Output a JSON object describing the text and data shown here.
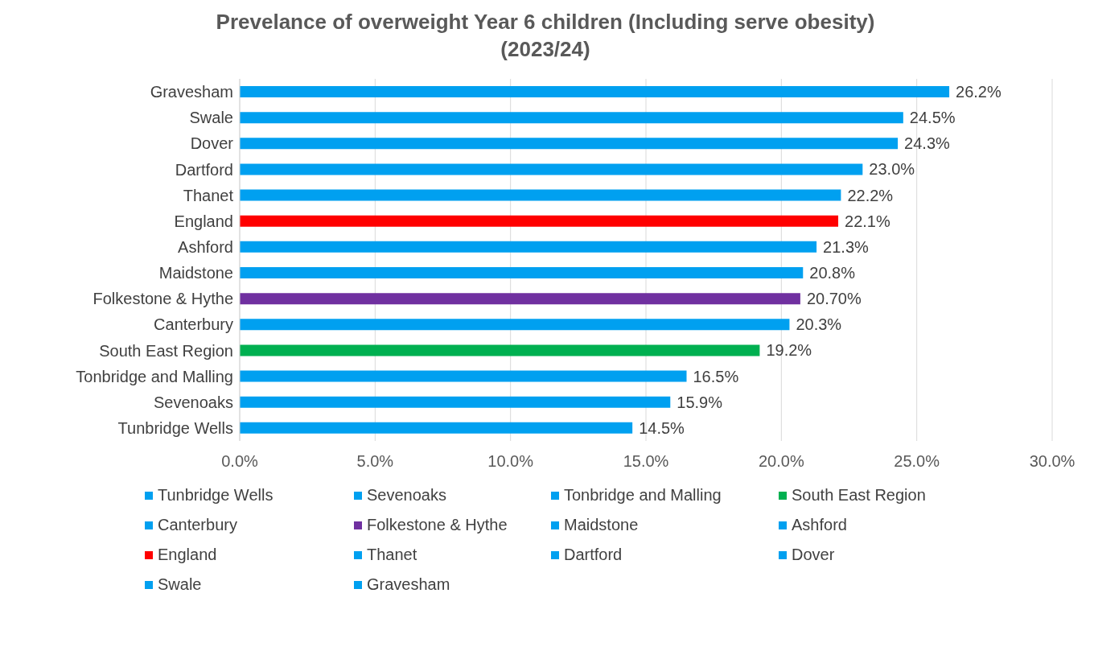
{
  "chart_data": {
    "type": "bar",
    "orientation": "horizontal",
    "stacked": true,
    "title": "Prevelance of overweight Year 6 children (Including serve obesity) (2023/24)",
    "categories": [
      "Gravesham",
      "Swale",
      "Dover",
      "Dartford",
      "Thanet",
      "England",
      "Ashford",
      "Maidstone",
      "Folkestone & Hythe",
      "Canterbury",
      "South East Region",
      "Tonbridge and Malling",
      "Sevenoaks",
      "Tunbridge Wells"
    ],
    "series": [
      {
        "name": "Tunbridge Wells",
        "color": "#00a0f0",
        "values": [
          null,
          null,
          null,
          null,
          null,
          null,
          null,
          null,
          null,
          null,
          null,
          null,
          null,
          14.5
        ],
        "value_labels": [
          null,
          null,
          null,
          null,
          null,
          null,
          null,
          null,
          null,
          null,
          null,
          null,
          null,
          "14.5%"
        ]
      },
      {
        "name": "Sevenoaks",
        "color": "#00a0f0",
        "values": [
          null,
          null,
          null,
          null,
          null,
          null,
          null,
          null,
          null,
          null,
          null,
          null,
          15.9,
          null
        ],
        "value_labels": [
          null,
          null,
          null,
          null,
          null,
          null,
          null,
          null,
          null,
          null,
          null,
          null,
          "15.9%",
          null
        ]
      },
      {
        "name": "Tonbridge and Malling",
        "color": "#00a0f0",
        "values": [
          null,
          null,
          null,
          null,
          null,
          null,
          null,
          null,
          null,
          null,
          null,
          16.5,
          null,
          null
        ],
        "value_labels": [
          null,
          null,
          null,
          null,
          null,
          null,
          null,
          null,
          null,
          null,
          null,
          "16.5%",
          null,
          null
        ]
      },
      {
        "name": "South East Region",
        "color": "#00b050",
        "values": [
          null,
          null,
          null,
          null,
          null,
          null,
          null,
          null,
          null,
          null,
          19.2,
          null,
          null,
          null
        ],
        "value_labels": [
          null,
          null,
          null,
          null,
          null,
          null,
          null,
          null,
          null,
          null,
          "19.2%",
          null,
          null,
          null
        ]
      },
      {
        "name": "Canterbury",
        "color": "#00a0f0",
        "values": [
          null,
          null,
          null,
          null,
          null,
          null,
          null,
          null,
          null,
          20.3,
          null,
          null,
          null,
          null
        ],
        "value_labels": [
          null,
          null,
          null,
          null,
          null,
          null,
          null,
          null,
          null,
          "20.3%",
          null,
          null,
          null,
          null
        ]
      },
      {
        "name": "Folkestone & Hythe",
        "color": "#7030a0",
        "values": [
          null,
          null,
          null,
          null,
          null,
          null,
          null,
          null,
          20.7,
          null,
          null,
          null,
          null,
          null
        ],
        "value_labels": [
          null,
          null,
          null,
          null,
          null,
          null,
          null,
          null,
          "20.70%",
          null,
          null,
          null,
          null,
          null
        ]
      },
      {
        "name": "Maidstone",
        "color": "#00a0f0",
        "values": [
          null,
          null,
          null,
          null,
          null,
          null,
          null,
          20.8,
          null,
          null,
          null,
          null,
          null,
          null
        ],
        "value_labels": [
          null,
          null,
          null,
          null,
          null,
          null,
          null,
          "20.8%",
          null,
          null,
          null,
          null,
          null,
          null
        ]
      },
      {
        "name": "Ashford",
        "color": "#00a0f0",
        "values": [
          null,
          null,
          null,
          null,
          null,
          null,
          21.3,
          null,
          null,
          null,
          null,
          null,
          null,
          null
        ],
        "value_labels": [
          null,
          null,
          null,
          null,
          null,
          null,
          "21.3%",
          null,
          null,
          null,
          null,
          null,
          null,
          null
        ]
      },
      {
        "name": "England",
        "color": "#ff0000",
        "values": [
          null,
          null,
          null,
          null,
          null,
          22.1,
          null,
          null,
          null,
          null,
          null,
          null,
          null,
          null
        ],
        "value_labels": [
          null,
          null,
          null,
          null,
          null,
          "22.1%",
          null,
          null,
          null,
          null,
          null,
          null,
          null,
          null
        ]
      },
      {
        "name": "Thanet",
        "color": "#00a0f0",
        "values": [
          null,
          null,
          null,
          null,
          22.2,
          null,
          null,
          null,
          null,
          null,
          null,
          null,
          null,
          null
        ],
        "value_labels": [
          null,
          null,
          null,
          null,
          "22.2%",
          null,
          null,
          null,
          null,
          null,
          null,
          null,
          null,
          null
        ]
      },
      {
        "name": "Dartford",
        "color": "#00a0f0",
        "values": [
          null,
          null,
          null,
          23.0,
          null,
          null,
          null,
          null,
          null,
          null,
          null,
          null,
          null,
          null
        ],
        "value_labels": [
          null,
          null,
          null,
          "23.0%",
          null,
          null,
          null,
          null,
          null,
          null,
          null,
          null,
          null,
          null
        ]
      },
      {
        "name": "Dover",
        "color": "#00a0f0",
        "values": [
          null,
          null,
          24.3,
          null,
          null,
          null,
          null,
          null,
          null,
          null,
          null,
          null,
          null,
          null
        ],
        "value_labels": [
          null,
          null,
          "24.3%",
          null,
          null,
          null,
          null,
          null,
          null,
          null,
          null,
          null,
          null,
          null
        ]
      },
      {
        "name": "Swale",
        "color": "#00a0f0",
        "values": [
          null,
          24.5,
          null,
          null,
          null,
          null,
          null,
          null,
          null,
          null,
          null,
          null,
          null,
          null
        ],
        "value_labels": [
          null,
          "24.5%",
          null,
          null,
          null,
          null,
          null,
          null,
          null,
          null,
          null,
          null,
          null,
          null
        ]
      },
      {
        "name": "Gravesham",
        "color": "#00a0f0",
        "values": [
          26.2,
          null,
          null,
          null,
          null,
          null,
          null,
          null,
          null,
          null,
          null,
          null,
          null,
          null
        ],
        "value_labels": [
          "26.2%",
          null,
          null,
          null,
          null,
          null,
          null,
          null,
          null,
          null,
          null,
          null,
          null,
          null
        ]
      }
    ],
    "xlim": [
      0,
      30
    ],
    "xticks": [
      {
        "value": 0,
        "label": "0.0%"
      },
      {
        "value": 5,
        "label": "5.0%"
      },
      {
        "value": 10,
        "label": "10.0%"
      },
      {
        "value": 15,
        "label": "15.0%"
      },
      {
        "value": 20,
        "label": "20.0%"
      },
      {
        "value": 25,
        "label": "25.0%"
      },
      {
        "value": 30,
        "label": "30.0%"
      }
    ],
    "grid": "x",
    "legend": "bottom"
  }
}
